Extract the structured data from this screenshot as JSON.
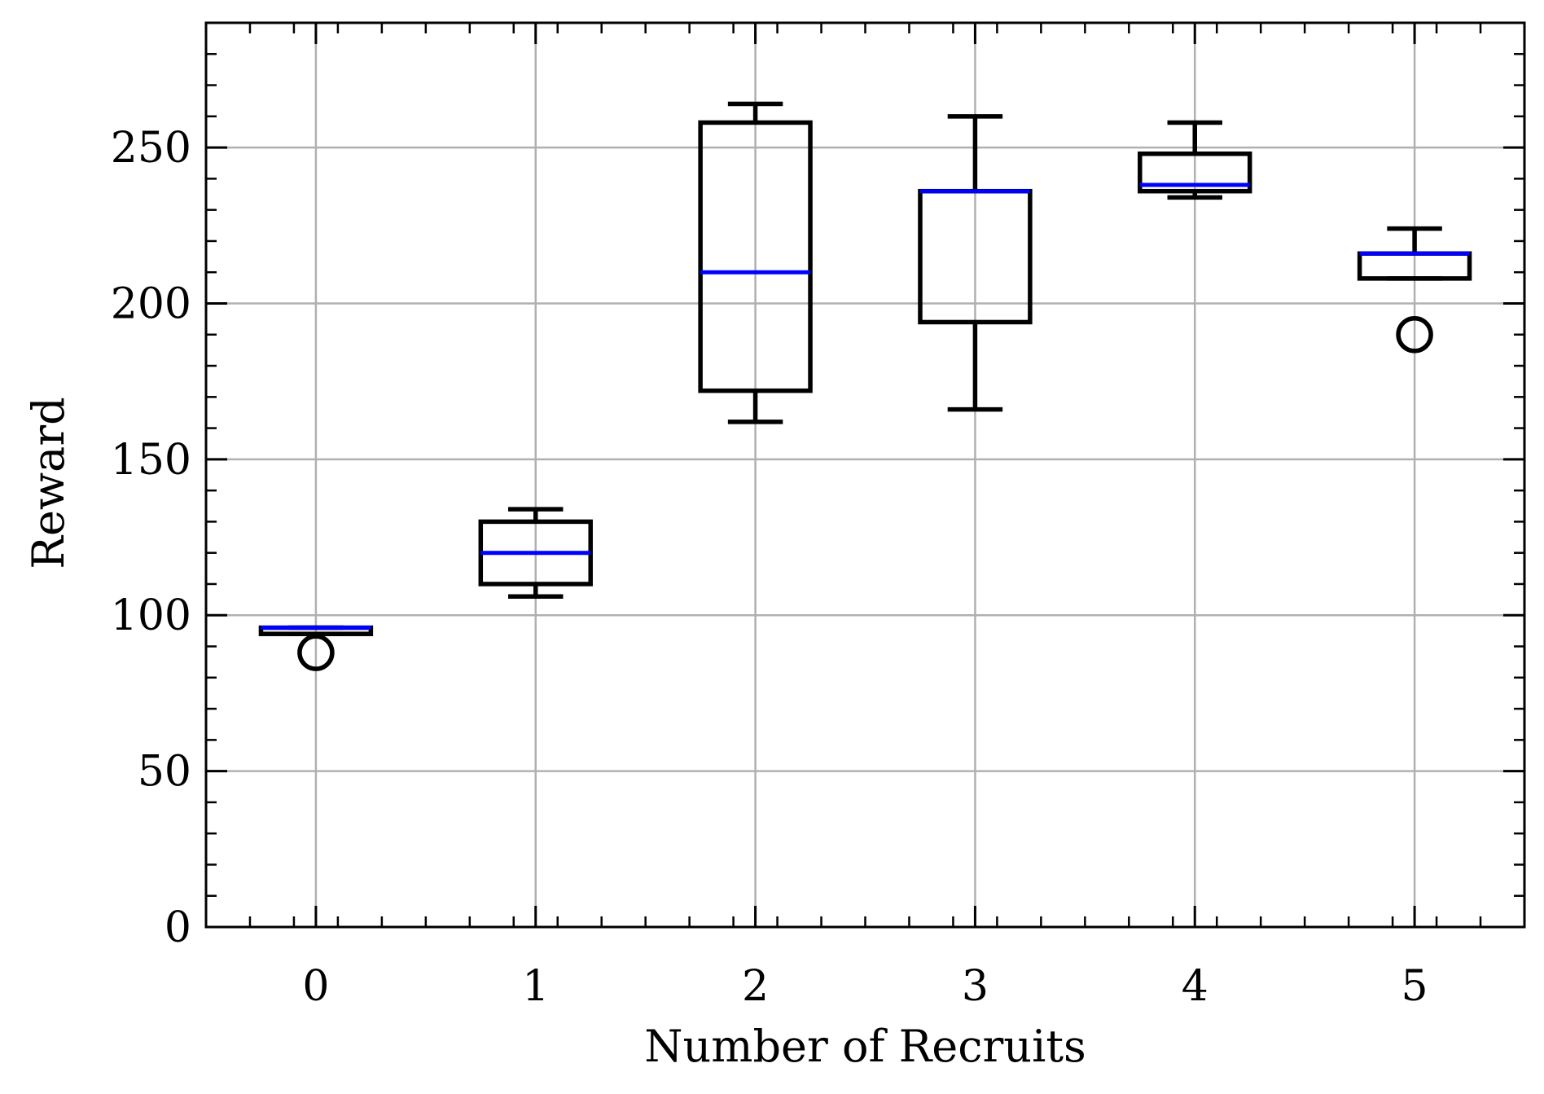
{
  "chart_data": {
    "type": "box",
    "title": "",
    "xlabel": "Number of Recruits",
    "ylabel": "Reward",
    "categories": [
      "0",
      "1",
      "2",
      "3",
      "4",
      "5"
    ],
    "ylim": [
      0,
      290
    ],
    "yticks": [
      0,
      50,
      100,
      150,
      200,
      250
    ],
    "grid": true,
    "colors": {
      "box": "#000000",
      "median": "#0000ff",
      "grid": "#b0b0b0"
    },
    "boxes": [
      {
        "category": "0",
        "whisker_low": 94,
        "q1": 94,
        "median": 96,
        "q3": 96,
        "whisker_high": 96,
        "outliers": [
          88
        ]
      },
      {
        "category": "1",
        "whisker_low": 106,
        "q1": 110,
        "median": 120,
        "q3": 130,
        "whisker_high": 134,
        "outliers": []
      },
      {
        "category": "2",
        "whisker_low": 162,
        "q1": 172,
        "median": 210,
        "q3": 258,
        "whisker_high": 264,
        "outliers": []
      },
      {
        "category": "3",
        "whisker_low": 166,
        "q1": 194,
        "median": 236,
        "q3": 236,
        "whisker_high": 260,
        "outliers": []
      },
      {
        "category": "4",
        "whisker_low": 234,
        "q1": 236,
        "median": 238,
        "q3": 248,
        "whisker_high": 258,
        "outliers": []
      },
      {
        "category": "5",
        "whisker_low": 208,
        "q1": 208,
        "median": 216,
        "q3": 216,
        "whisker_high": 224,
        "outliers": [
          190
        ]
      }
    ]
  }
}
